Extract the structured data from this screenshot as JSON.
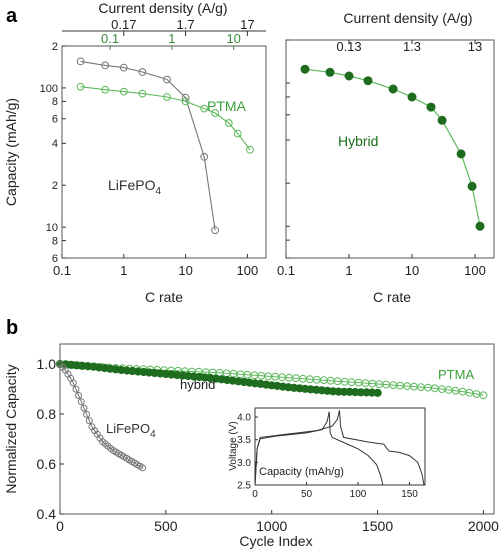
{
  "panels": {
    "a": "a",
    "b": "b"
  },
  "colors": {
    "ptma": "#5cb85c",
    "ptma_fill": "#c6e8c3",
    "hybrid": "#1b6e1b",
    "hybrid_fill": "#1f6b1f",
    "lifepo4": "#777777",
    "lifepo4_tick": "#3a8a3a"
  },
  "chart_data": [
    {
      "id": "a-left",
      "type": "line",
      "scale": {
        "x": "log",
        "y": "log"
      },
      "xlabel": "C rate",
      "ylabel": "Capacity (mAh/g)",
      "x2label": "Current density (A/g)",
      "xlim": [
        0.1,
        200
      ],
      "ylim": [
        6,
        200
      ],
      "xticks": [
        {
          "v": 0.1,
          "l": "0.1"
        },
        {
          "v": 1,
          "l": "1"
        },
        {
          "v": 10,
          "l": "10"
        },
        {
          "v": 100,
          "l": "100"
        }
      ],
      "yticks": [
        {
          "v": 6,
          "l": "6"
        },
        {
          "v": 8,
          "l": "8"
        },
        {
          "v": 10,
          "l": "10"
        },
        {
          "v": 20,
          "l": "2"
        },
        {
          "v": 40,
          "l": "4"
        },
        {
          "v": 60,
          "l": "6"
        },
        {
          "v": 80,
          "l": "8"
        },
        {
          "v": 100,
          "l": "100"
        },
        {
          "v": 200,
          "l": "2"
        }
      ],
      "x2ticks_black": [
        {
          "v": 1,
          "l": "0.17"
        },
        {
          "v": 10,
          "l": "1.7"
        },
        {
          "v": 100,
          "l": "17"
        }
      ],
      "x2ticks_green": [
        {
          "v": 0.6,
          "l": "0.1"
        },
        {
          "v": 6,
          "l": "1"
        },
        {
          "v": 60,
          "l": "10"
        }
      ],
      "series": [
        {
          "name": "LiFePO4",
          "x": [
            0.2,
            0.5,
            1,
            2,
            5,
            10,
            20,
            30
          ],
          "y": [
            155,
            145,
            140,
            130,
            115,
            85,
            32,
            9.5
          ]
        },
        {
          "name": "PTMA",
          "x": [
            0.2,
            0.5,
            1,
            2,
            5,
            10,
            20,
            30,
            50,
            70,
            110
          ],
          "y": [
            102,
            97,
            94,
            91,
            86,
            80,
            71,
            66,
            56,
            47,
            36
          ]
        }
      ],
      "annotations": [
        {
          "text": "PTMA"
        },
        {
          "text": "LiFePO",
          "sub": "4"
        }
      ]
    },
    {
      "id": "a-right",
      "type": "line",
      "scale": {
        "x": "log",
        "y": "log"
      },
      "xlabel": "C rate",
      "x2label": "Current density (A/g)",
      "xlim": [
        0.1,
        200
      ],
      "ylim": [
        6,
        200
      ],
      "xticks": [
        {
          "v": 0.1,
          "l": "0.1"
        },
        {
          "v": 1,
          "l": "1"
        },
        {
          "v": 10,
          "l": "10"
        },
        {
          "v": 100,
          "l": "100"
        }
      ],
      "x2ticks": [
        {
          "v": 1,
          "l": "0.13"
        },
        {
          "v": 10,
          "l": "1.3"
        },
        {
          "v": 100,
          "l": "13"
        }
      ],
      "series": [
        {
          "name": "Hybrid",
          "x": [
            0.2,
            0.5,
            1,
            2,
            5,
            10,
            20,
            30,
            60,
            90,
            120
          ],
          "y": [
            125,
            119,
            112,
            104,
            91,
            80,
            68,
            55,
            32,
            19,
            10
          ]
        }
      ],
      "annotations": [
        {
          "text": "Hybrid"
        }
      ]
    },
    {
      "id": "b",
      "type": "line",
      "xlabel": "Cycle Index",
      "ylabel": "Normalized Capacity",
      "xlim": [
        0,
        2050
      ],
      "ylim": [
        0.4,
        1.08
      ],
      "xticks": [
        {
          "v": 0,
          "l": "0"
        },
        {
          "v": 500,
          "l": "500"
        },
        {
          "v": 1000,
          "l": "1000"
        },
        {
          "v": 1500,
          "l": "1500"
        },
        {
          "v": 2000,
          "l": "2000"
        }
      ],
      "yticks": [
        {
          "v": 0.4,
          "l": "0.4"
        },
        {
          "v": 0.6,
          "l": "0.6"
        },
        {
          "v": 0.8,
          "l": "0.8"
        },
        {
          "v": 1.0,
          "l": "1.0"
        }
      ],
      "series": [
        {
          "name": "PTMA",
          "x": [
            0,
            250,
            500,
            750,
            1000,
            1250,
            1500,
            1750,
            1900,
            2000
          ],
          "y": [
            1.0,
            0.985,
            0.975,
            0.965,
            0.95,
            0.935,
            0.92,
            0.905,
            0.89,
            0.875
          ]
        },
        {
          "name": "hybrid",
          "x": [
            0,
            150,
            300,
            500,
            700,
            900,
            1100,
            1300,
            1500
          ],
          "y": [
            1.0,
            0.99,
            0.975,
            0.96,
            0.945,
            0.925,
            0.905,
            0.89,
            0.885
          ]
        },
        {
          "name": "LiFePO4",
          "x": [
            0,
            30,
            60,
            100,
            150,
            200,
            250,
            300,
            350,
            390
          ],
          "y": [
            1.0,
            0.97,
            0.93,
            0.85,
            0.75,
            0.69,
            0.655,
            0.63,
            0.605,
            0.585
          ]
        }
      ],
      "annotations": [
        {
          "text": "PTMA"
        },
        {
          "text": "hybrid"
        },
        {
          "text": "LiFePO",
          "sub": "4"
        }
      ]
    },
    {
      "id": "b-inset",
      "type": "line",
      "xlabel": "Capacity (mAh/g)",
      "ylabel": "Voltage (V)",
      "xlim": [
        0,
        165
      ],
      "ylim": [
        2.5,
        4.2
      ],
      "xticks": [
        {
          "v": 0,
          "l": "0"
        },
        {
          "v": 50,
          "l": "50"
        },
        {
          "v": 100,
          "l": "100"
        },
        {
          "v": 150,
          "l": "150"
        }
      ],
      "yticks": [
        {
          "v": 2.5,
          "l": "2.5"
        },
        {
          "v": 3.0,
          "l": "3.0"
        },
        {
          "v": 3.5,
          "l": "3.5"
        },
        {
          "v": 4.0,
          "l": "4.0"
        }
      ],
      "series": [
        {
          "name": "",
          "x": [
            0,
            2,
            5,
            20,
            50,
            65,
            70,
            72,
            73,
            75,
            85,
            100,
            110,
            118,
            122,
            124
          ],
          "y": [
            2.5,
            3.3,
            3.52,
            3.58,
            3.65,
            3.72,
            3.9,
            4.12,
            3.65,
            3.55,
            3.45,
            3.3,
            3.15,
            2.95,
            2.7,
            2.5
          ]
        },
        {
          "name": "",
          "x": [
            0,
            2,
            5,
            30,
            60,
            75,
            80,
            82,
            83,
            86,
            110,
            125,
            130,
            140,
            150,
            158,
            162,
            164
          ],
          "y": [
            2.5,
            3.3,
            3.55,
            3.62,
            3.7,
            3.8,
            3.95,
            4.15,
            3.8,
            3.55,
            3.45,
            3.4,
            3.25,
            3.22,
            3.15,
            3.0,
            2.75,
            2.5
          ]
        }
      ]
    }
  ]
}
